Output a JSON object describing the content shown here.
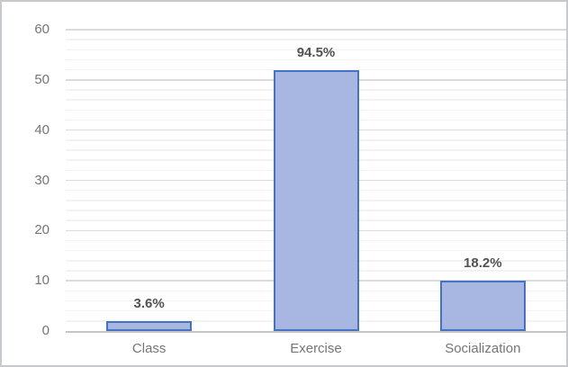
{
  "chart_data": {
    "type": "bar",
    "title": "",
    "xlabel": "",
    "ylabel": "",
    "categories": [
      "Class",
      "Exercise",
      "Socialization"
    ],
    "values": [
      2,
      52,
      10
    ],
    "value_labels": [
      "3.6%",
      "94.5%",
      "18.2%"
    ],
    "ylim": [
      0,
      60
    ],
    "y_ticks": [
      0,
      10,
      20,
      30,
      40,
      50,
      60
    ],
    "y_major_step": 10,
    "y_minor_step": 2,
    "grid": "horizontal major + minor",
    "legend": "none"
  },
  "colors": {
    "background": "#FFFFFF",
    "chart_border": "#C6C9CD",
    "bar_fill": "#A8B6E2",
    "bar_border": "#4472C4",
    "major_gridline": "#DBDBDB",
    "minor_gridline": "#F3F3F3",
    "axis_line": "#C6C6C6",
    "tick_label": "#757575",
    "data_label": "#525252"
  }
}
